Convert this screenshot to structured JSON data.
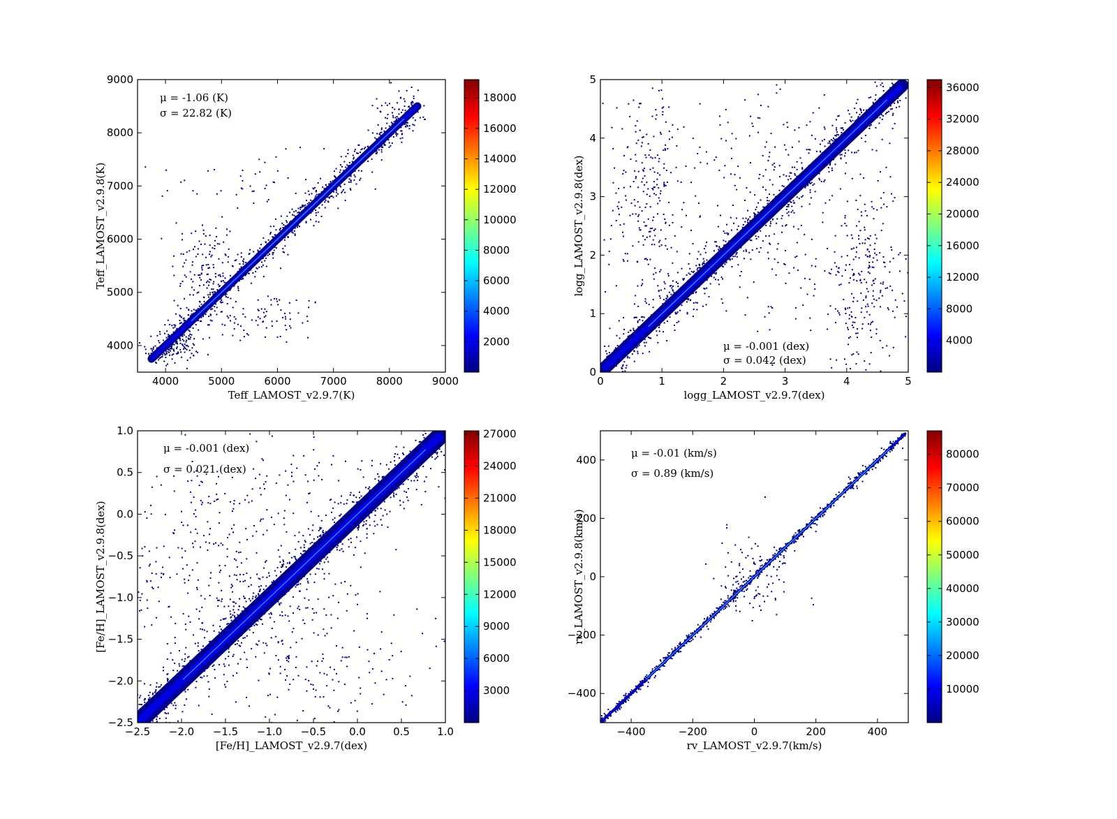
{
  "figure": {
    "background": "#ffffff"
  },
  "colormap": {
    "name": "jet",
    "stops": [
      "#00007f",
      "#0000ff",
      "#007fff",
      "#00ffff",
      "#7fff7f",
      "#ffff00",
      "#ff7f00",
      "#ff0000",
      "#7f0000"
    ]
  },
  "chart_data": [
    {
      "type": "scatter",
      "name": "teff",
      "xlabel": "Teff_LAMOST_v2.9.7(K)",
      "ylabel": "Teff_LAMOST_v2.9.8(K)",
      "xlim": [
        3500,
        9000
      ],
      "ylim": [
        3500,
        9000
      ],
      "xticks": [
        4000,
        5000,
        6000,
        7000,
        8000,
        9000
      ],
      "xtick_labels": [
        "4000",
        "5000",
        "6000",
        "7000",
        "8000",
        "9000"
      ],
      "yticks": [
        4000,
        5000,
        6000,
        7000,
        8000,
        9000
      ],
      "ytick_labels": [
        "4000",
        "5000",
        "6000",
        "7000",
        "8000",
        "9000"
      ],
      "annotation": {
        "mu": "μ = -1.06 (K)",
        "sigma": "σ = 22.82 (K)",
        "position": "top-left"
      },
      "colorbar": {
        "range": [
          0,
          19200
        ],
        "ticks": [
          2000,
          4000,
          6000,
          8000,
          10000,
          12000,
          14000,
          16000,
          18000
        ],
        "tick_labels": [
          "2000",
          "4000",
          "6000",
          "8000",
          "10000",
          "12000",
          "14000",
          "16000",
          "18000"
        ]
      },
      "diagonal": {
        "from": 3750,
        "to": 8500
      },
      "band_width": 100,
      "outlier_clusters": [
        {
          "cx": 4700,
          "cy": 5500,
          "sx": 300,
          "sy": 450,
          "n": 120
        },
        {
          "cx": 5700,
          "cy": 4500,
          "sx": 600,
          "sy": 250,
          "n": 90
        },
        {
          "cx": 5600,
          "cy": 7000,
          "sx": 900,
          "sy": 300,
          "n": 60
        },
        {
          "cx": 8200,
          "cy": 8500,
          "sx": 200,
          "sy": 300,
          "n": 50
        },
        {
          "cx": 4200,
          "cy": 4000,
          "sx": 200,
          "sy": 150,
          "n": 120
        }
      ]
    },
    {
      "type": "scatter",
      "name": "logg",
      "xlabel": "logg_LAMOST_v2.9.7(dex)",
      "ylabel": "logg_LAMOST_v2.9.8(dex)",
      "xlim": [
        0,
        5
      ],
      "ylim": [
        0,
        5
      ],
      "xticks": [
        0,
        1,
        2,
        3,
        4,
        5
      ],
      "xtick_labels": [
        "0",
        "1",
        "2",
        "3",
        "4",
        "5"
      ],
      "yticks": [
        0,
        1,
        2,
        3,
        4,
        5
      ],
      "ytick_labels": [
        "0",
        "1",
        "2",
        "3",
        "4",
        "5"
      ],
      "annotation": {
        "mu": "μ = -0.001 (dex)",
        "sigma": "σ = 0.042 (dex)",
        "position": "bottom-center"
      },
      "colorbar": {
        "range": [
          0,
          37000
        ],
        "ticks": [
          4000,
          8000,
          12000,
          16000,
          20000,
          24000,
          28000,
          32000,
          36000
        ],
        "tick_labels": [
          "4000",
          "8000",
          "12000",
          "16000",
          "20000",
          "24000",
          "28000",
          "32000",
          "36000"
        ]
      },
      "diagonal": {
        "from": 0.05,
        "to": 4.9
      },
      "band_width": 0.15,
      "outlier_clusters": [
        {
          "cx": 0.8,
          "cy": 3.0,
          "sx": 0.35,
          "sy": 1.0,
          "n": 260
        },
        {
          "cx": 4.3,
          "cy": 1.5,
          "sx": 0.4,
          "sy": 0.9,
          "n": 260
        },
        {
          "cx": 2.8,
          "cy": 3.8,
          "sx": 0.8,
          "sy": 0.6,
          "n": 120
        },
        {
          "cx": 3.0,
          "cy": 1.8,
          "sx": 0.9,
          "sy": 0.6,
          "n": 120
        }
      ]
    },
    {
      "type": "scatter",
      "name": "feh",
      "xlabel": "[Fe/H]_LAMOST_v2.9.7(dex)",
      "ylabel": "[Fe/H]_LAMOST_v2.9.8(dex)",
      "xlim": [
        -2.5,
        1.0
      ],
      "ylim": [
        -2.5,
        1.0
      ],
      "xticks": [
        -2.5,
        -2.0,
        -1.5,
        -1.0,
        -0.5,
        0.0,
        0.5,
        1.0
      ],
      "xtick_labels": [
        "−2.5",
        "−2.0",
        "−1.5",
        "−1.0",
        "−0.5",
        "0.0",
        "0.5",
        "1.0"
      ],
      "yticks": [
        -2.5,
        -2.0,
        -1.5,
        -1.0,
        -0.5,
        0.0,
        0.5,
        1.0
      ],
      "ytick_labels": [
        "−2.5",
        "−2.0",
        "−1.5",
        "−1.0",
        "−0.5",
        "0.0",
        "0.5",
        "1.0"
      ],
      "annotation": {
        "mu": "μ = -0.001 (dex)",
        "sigma": "σ = 0.021 (dex)",
        "position": "top-left"
      },
      "colorbar": {
        "range": [
          0,
          27300
        ],
        "ticks": [
          3000,
          6000,
          9000,
          12000,
          15000,
          18000,
          21000,
          24000,
          27000
        ],
        "tick_labels": [
          "3000",
          "6000",
          "9000",
          "12000",
          "15000",
          "18000",
          "21000",
          "24000",
          "27000"
        ]
      },
      "diagonal": {
        "from": -2.5,
        "to": 0.95
      },
      "band_width": 0.14,
      "outlier_clusters": [
        {
          "cx": -1.7,
          "cy": -0.6,
          "sx": 0.6,
          "sy": 0.7,
          "n": 300
        },
        {
          "cx": -0.5,
          "cy": -1.7,
          "sx": 0.6,
          "sy": 0.6,
          "n": 220
        },
        {
          "cx": -1.0,
          "cy": 0.4,
          "sx": 0.8,
          "sy": 0.3,
          "n": 80
        }
      ]
    },
    {
      "type": "scatter",
      "name": "rv",
      "xlabel": "rv_LAMOST_v2.9.7(km/s)",
      "ylabel": "rv_LAMOST_v2.9.8(km/s)",
      "xlim": [
        -500,
        500
      ],
      "ylim": [
        -500,
        500
      ],
      "xticks": [
        -400,
        -200,
        0,
        200,
        400
      ],
      "xtick_labels": [
        "−400",
        "−200",
        "0",
        "200",
        "400"
      ],
      "yticks": [
        -400,
        -200,
        0,
        200,
        400
      ],
      "ytick_labels": [
        "−400",
        "−200",
        "0",
        "200",
        "400"
      ],
      "annotation": {
        "mu": "μ = -0.01 (km/s)",
        "sigma": "σ = 0.89 (km/s)",
        "position": "top-left"
      },
      "colorbar": {
        "range": [
          0,
          87000
        ],
        "ticks": [
          10000,
          20000,
          30000,
          40000,
          50000,
          60000,
          70000,
          80000
        ],
        "tick_labels": [
          "10000",
          "20000",
          "30000",
          "40000",
          "50000",
          "60000",
          "70000",
          "80000"
        ]
      },
      "diagonal": {
        "from": -500,
        "to": 490
      },
      "band_width": 6,
      "outlier_clusters": [
        {
          "cx": -20,
          "cy": 20,
          "sx": 60,
          "sy": 80,
          "n": 60
        },
        {
          "cx": 20,
          "cy": -20,
          "sx": 80,
          "sy": 60,
          "n": 40
        }
      ]
    }
  ]
}
